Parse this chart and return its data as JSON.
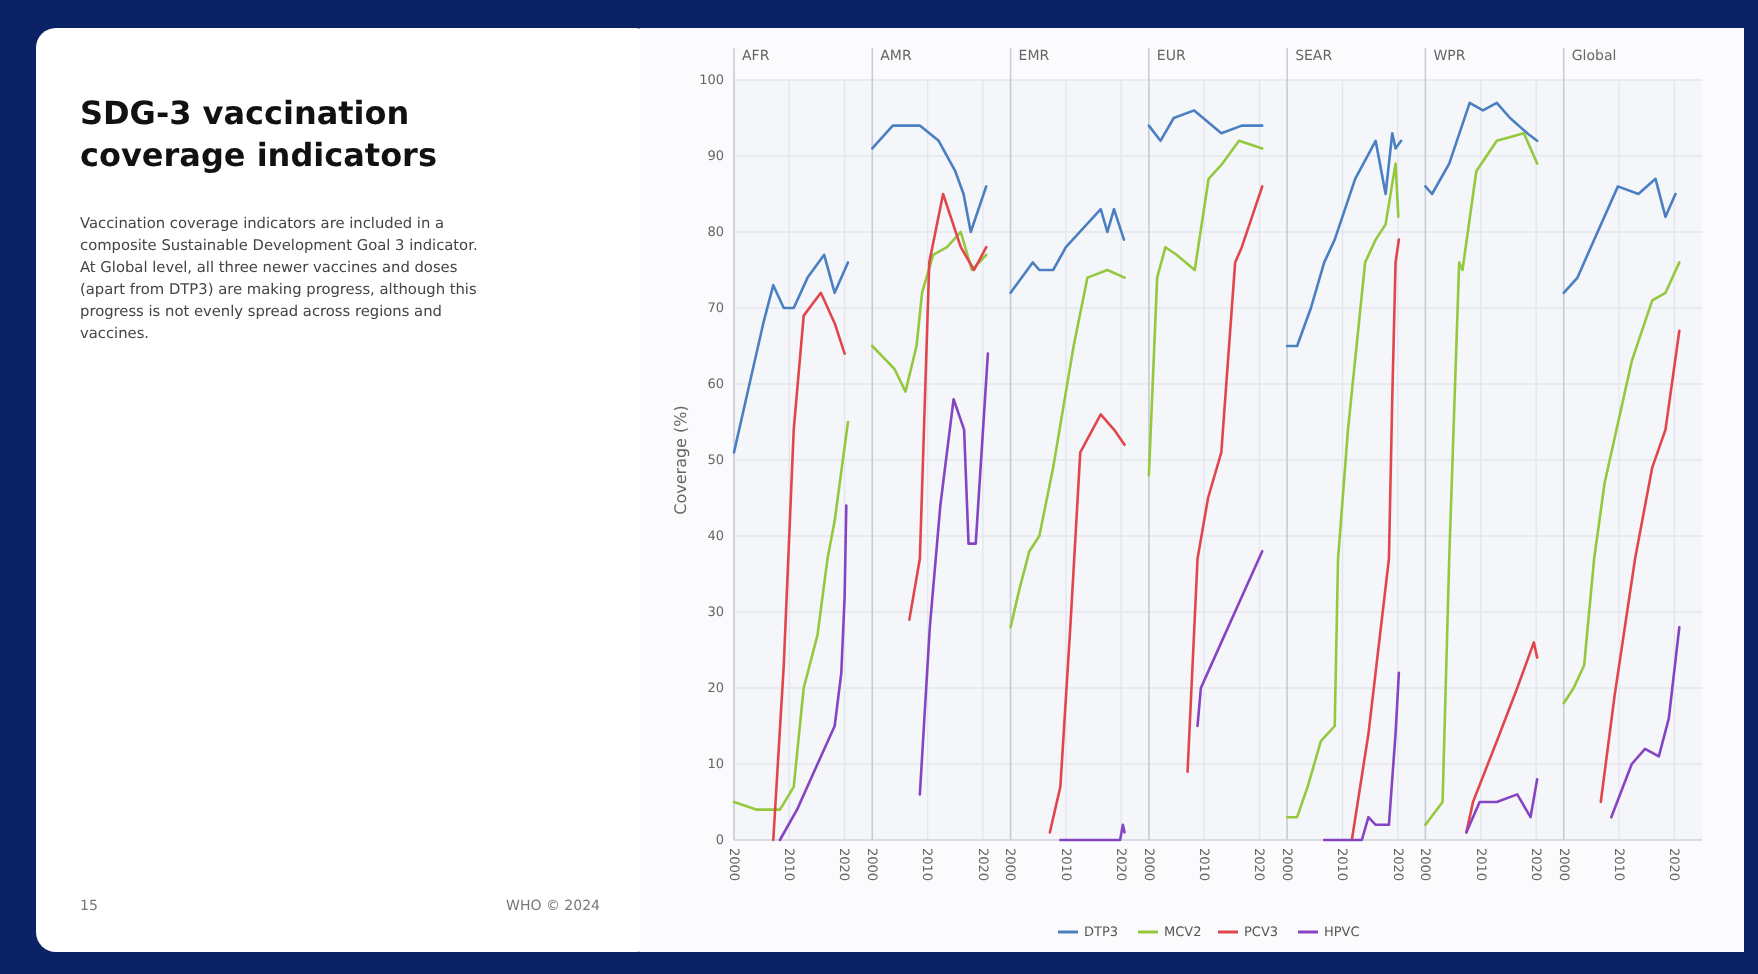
{
  "chart_data": [
    {
      "type": "other",
      "title": "SDG-3 vaccination coverage indicators",
      "annotations": [
        "Vaccination coverage indicators are included in a composite Sustainable Development Goal 3 indicator. At Global level, all three newer vaccines and doses (apart from DTP3) are making progress, although this progress is not evenly spread across regions and vaccines.",
        "15",
        "WHO © 2024"
      ]
    },
    {
      "type": "line",
      "title": "AFR",
      "ylabel": "Coverage (%)",
      "legend": "bottom",
      "xlim": [
        2000,
        2025
      ],
      "xticks": [
        2000,
        2010,
        2020
      ],
      "ylim": [
        0,
        100
      ],
      "yticks": [
        0,
        10,
        20,
        30,
        40,
        50,
        60,
        70,
        80,
        90,
        100
      ],
      "grid": true,
      "series": [
        {
          "name": "DTP3",
          "color": "#4a7fc1",
          "x": [
            2000,
            2002.8,
            2005.3,
            2007.1,
            2009,
            2010.8,
            2013.3,
            2016.3,
            2018.2,
            2020.6
          ],
          "values": [
            51,
            60,
            68,
            73,
            70,
            70,
            74,
            77,
            72,
            76
          ]
        },
        {
          "name": "MCV2",
          "color": "#94c83d",
          "x": [
            2000,
            2004,
            2008.3,
            2010.8,
            2012.6,
            2015.1,
            2016.9,
            2018.2,
            2020.6
          ],
          "values": [
            5,
            4,
            4,
            7,
            20,
            27,
            37,
            42,
            55
          ]
        },
        {
          "name": "PCV3",
          "color": "#e0474c",
          "x": [
            2007.1,
            2009,
            2010.8,
            2012.6,
            2015.7,
            2018.2,
            2020
          ],
          "values": [
            0,
            23,
            54,
            69,
            72,
            68,
            64
          ]
        },
        {
          "name": "HPVC",
          "color": "#8744c2",
          "x": [
            2008.3,
            2011.4,
            2015.1,
            2018.2,
            2019.4,
            2020,
            2020.3
          ],
          "values": [
            0,
            4,
            10,
            15,
            22,
            32,
            44
          ]
        }
      ]
    },
    {
      "type": "line",
      "title": "AMR",
      "xlim": [
        2000,
        2025
      ],
      "xticks": [
        2000,
        2010,
        2020
      ],
      "ylim": [
        0,
        100
      ],
      "yticks": [
        0,
        10,
        20,
        30,
        40,
        50,
        60,
        70,
        80,
        90,
        100
      ],
      "grid": true,
      "tick_labels": "x",
      "series": [
        {
          "color": "#4a7fc1",
          "x": [
            2000,
            2003.7,
            2008.6,
            2012,
            2015,
            2016.5,
            2017.8,
            2020.6
          ],
          "values": [
            91,
            94,
            94,
            92,
            88,
            85,
            80,
            86
          ]
        },
        {
          "color": "#94c83d",
          "x": [
            2000,
            2004,
            2006,
            2008,
            2009,
            2011,
            2013.5,
            2016,
            2018,
            2020.6
          ],
          "values": [
            65,
            62,
            59,
            65,
            72,
            77,
            78,
            80,
            75,
            77
          ]
        },
        {
          "color": "#e0474c",
          "x": [
            2006.7,
            2008.6,
            2010.3,
            2012.8,
            2016,
            2018.4,
            2020.6
          ],
          "values": [
            29,
            37,
            76,
            85,
            78,
            75,
            78
          ]
        },
        {
          "color": "#8744c2",
          "x": [
            2008.6,
            2010.4,
            2012.3,
            2014.7,
            2016.6,
            2017.4,
            2018.7,
            2020.9
          ],
          "values": [
            6,
            28,
            44,
            58,
            54,
            39,
            39,
            64
          ]
        }
      ]
    },
    {
      "type": "line",
      "title": "EMR",
      "xlim": [
        2000,
        2025
      ],
      "xticks": [
        2000,
        2010,
        2020
      ],
      "ylim": [
        0,
        100
      ],
      "yticks": [
        0,
        10,
        20,
        30,
        40,
        50,
        60,
        70,
        80,
        90,
        100
      ],
      "grid": true,
      "tick_labels": "x",
      "series": [
        {
          "color": "#4a7fc1",
          "x": [
            2000,
            2004,
            2005.2,
            2007.7,
            2010,
            2016.3,
            2017.5,
            2018.7,
            2020.5
          ],
          "values": [
            72,
            76,
            75,
            75,
            78,
            83,
            80,
            83,
            79
          ]
        },
        {
          "color": "#94c83d",
          "x": [
            2000,
            2001.6,
            2003.4,
            2005.2,
            2007.7,
            2011.4,
            2013.9,
            2017.5,
            2020.6
          ],
          "values": [
            28,
            33,
            38,
            40,
            49,
            65,
            74,
            75,
            74
          ]
        },
        {
          "color": "#e0474c",
          "x": [
            2007.1,
            2009,
            2010.8,
            2012.6,
            2016.3,
            2018.7,
            2020.6
          ],
          "values": [
            1,
            7,
            28,
            51,
            56,
            54,
            52
          ]
        },
        {
          "color": "#8744c2",
          "x": [
            2009,
            2019.8,
            2020.3,
            2020.6
          ],
          "values": [
            0,
            0,
            2,
            1
          ]
        }
      ]
    },
    {
      "type": "line",
      "title": "EUR",
      "xlim": [
        2000,
        2025
      ],
      "xticks": [
        2000,
        2010,
        2020
      ],
      "ylim": [
        0,
        100
      ],
      "yticks": [
        0,
        10,
        20,
        30,
        40,
        50,
        60,
        70,
        80,
        90,
        100
      ],
      "grid": true,
      "tick_labels": "x",
      "series": [
        {
          "color": "#4a7fc1",
          "x": [
            2000,
            2002.1,
            2004.5,
            2008.2,
            2013.1,
            2016.8,
            2020.5
          ],
          "values": [
            94,
            92,
            95,
            96,
            93,
            94,
            94
          ]
        },
        {
          "color": "#94c83d",
          "x": [
            2000,
            2001.5,
            2003,
            2005,
            2008.3,
            2010.8,
            2013.3,
            2016.3,
            2020.5
          ],
          "values": [
            48,
            74,
            78,
            77,
            75,
            87,
            89,
            92,
            91
          ]
        },
        {
          "color": "#e0474c",
          "x": [
            2007,
            2008.8,
            2010.7,
            2013.1,
            2015.6,
            2016.8,
            2020.5
          ],
          "values": [
            9,
            37,
            45,
            51,
            76,
            78,
            86
          ]
        },
        {
          "color": "#8744c2",
          "x": [
            2008.8,
            2009.4,
            2013.1,
            2016.8,
            2020.5
          ],
          "values": [
            15,
            20,
            26,
            32,
            38
          ]
        }
      ]
    },
    {
      "type": "line",
      "title": "SEAR",
      "xlim": [
        2000,
        2025
      ],
      "xticks": [
        2000,
        2010,
        2020
      ],
      "ylim": [
        0,
        100
      ],
      "yticks": [
        0,
        10,
        20,
        30,
        40,
        50,
        60,
        70,
        80,
        90,
        100
      ],
      "grid": true,
      "tick_labels": "x",
      "series": [
        {
          "color": "#4a7fc1",
          "x": [
            2000,
            2001.8,
            2004.3,
            2006.7,
            2008.6,
            2012.3,
            2016,
            2017.8,
            2019,
            2019.6,
            2020.6
          ],
          "values": [
            65,
            65,
            70,
            76,
            79,
            87,
            92,
            85,
            93,
            91,
            92
          ]
        },
        {
          "color": "#94c83d",
          "x": [
            2000,
            2001.8,
            2003.7,
            2006.1,
            2008.6,
            2009.2,
            2011,
            2014.1,
            2016,
            2017.8,
            2019.6,
            2020.1
          ],
          "values": [
            3,
            3,
            7,
            13,
            15,
            37,
            54,
            76,
            79,
            81,
            89,
            82
          ]
        },
        {
          "color": "#e0474c",
          "x": [
            2011.7,
            2014.7,
            2018.4,
            2019,
            2019.6,
            2020.2
          ],
          "values": [
            0,
            14,
            37,
            58,
            76,
            79
          ]
        },
        {
          "color": "#8744c2",
          "x": [
            2006.7,
            2013.5,
            2014.7,
            2016,
            2018.4,
            2019.6,
            2020.2
          ],
          "values": [
            0,
            0,
            3,
            2,
            2,
            14,
            22
          ]
        }
      ]
    },
    {
      "type": "line",
      "title": "WPR",
      "xlim": [
        2000,
        2025
      ],
      "xticks": [
        2000,
        2010,
        2020
      ],
      "ylim": [
        0,
        100
      ],
      "yticks": [
        0,
        10,
        20,
        30,
        40,
        50,
        60,
        70,
        80,
        90,
        100
      ],
      "grid": true,
      "tick_labels": "x",
      "series": [
        {
          "color": "#4a7fc1",
          "x": [
            2000,
            2001.2,
            2004.3,
            2008,
            2010.4,
            2012.9,
            2015.3,
            2018.4,
            2020.2
          ],
          "values": [
            86,
            85,
            89,
            97,
            96,
            97,
            95,
            93,
            92
          ]
        },
        {
          "color": "#94c83d",
          "x": [
            2000,
            2003.1,
            2004.3,
            2006.1,
            2006.7,
            2009.2,
            2012.9,
            2017.8,
            2020.2
          ],
          "values": [
            2,
            5,
            37,
            76,
            75,
            88,
            92,
            93,
            89
          ]
        },
        {
          "color": "#e0474c",
          "x": [
            2007.4,
            2008.6,
            2012.9,
            2016.6,
            2019.6,
            2020.2
          ],
          "values": [
            1,
            5,
            13,
            20,
            26,
            24
          ]
        },
        {
          "color": "#8744c2",
          "x": [
            2007.4,
            2009.8,
            2012.9,
            2016.6,
            2019,
            2020.2
          ],
          "values": [
            1,
            5,
            5,
            6,
            3,
            8
          ]
        }
      ]
    },
    {
      "type": "line",
      "title": "Global",
      "xlim": [
        2000,
        2025
      ],
      "xticks": [
        2000,
        2010,
        2020
      ],
      "ylim": [
        0,
        100
      ],
      "yticks": [
        0,
        10,
        20,
        30,
        40,
        50,
        60,
        70,
        80,
        90,
        100
      ],
      "grid": true,
      "tick_labels": "x",
      "series": [
        {
          "color": "#4a7fc1",
          "x": [
            2000,
            2002.5,
            2004.9,
            2009.8,
            2013.5,
            2016.6,
            2018.4,
            2020.2
          ],
          "values": [
            72,
            74,
            78,
            86,
            85,
            87,
            82,
            85
          ]
        },
        {
          "color": "#94c83d",
          "x": [
            2000,
            2001.8,
            2003.7,
            2005.5,
            2007.4,
            2012.3,
            2016,
            2018.4,
            2020.9
          ],
          "values": [
            18,
            20,
            23,
            37,
            47,
            63,
            71,
            72,
            76
          ]
        },
        {
          "color": "#e0474c",
          "x": [
            2006.7,
            2009.2,
            2012.9,
            2016,
            2018.4,
            2020.9
          ],
          "values": [
            5,
            19,
            37,
            49,
            54,
            67
          ]
        },
        {
          "color": "#8744c2",
          "x": [
            2008.6,
            2012.3,
            2014.7,
            2017.2,
            2019,
            2020.9
          ],
          "values": [
            3,
            10,
            12,
            11,
            16,
            28
          ]
        }
      ]
    }
  ]
}
